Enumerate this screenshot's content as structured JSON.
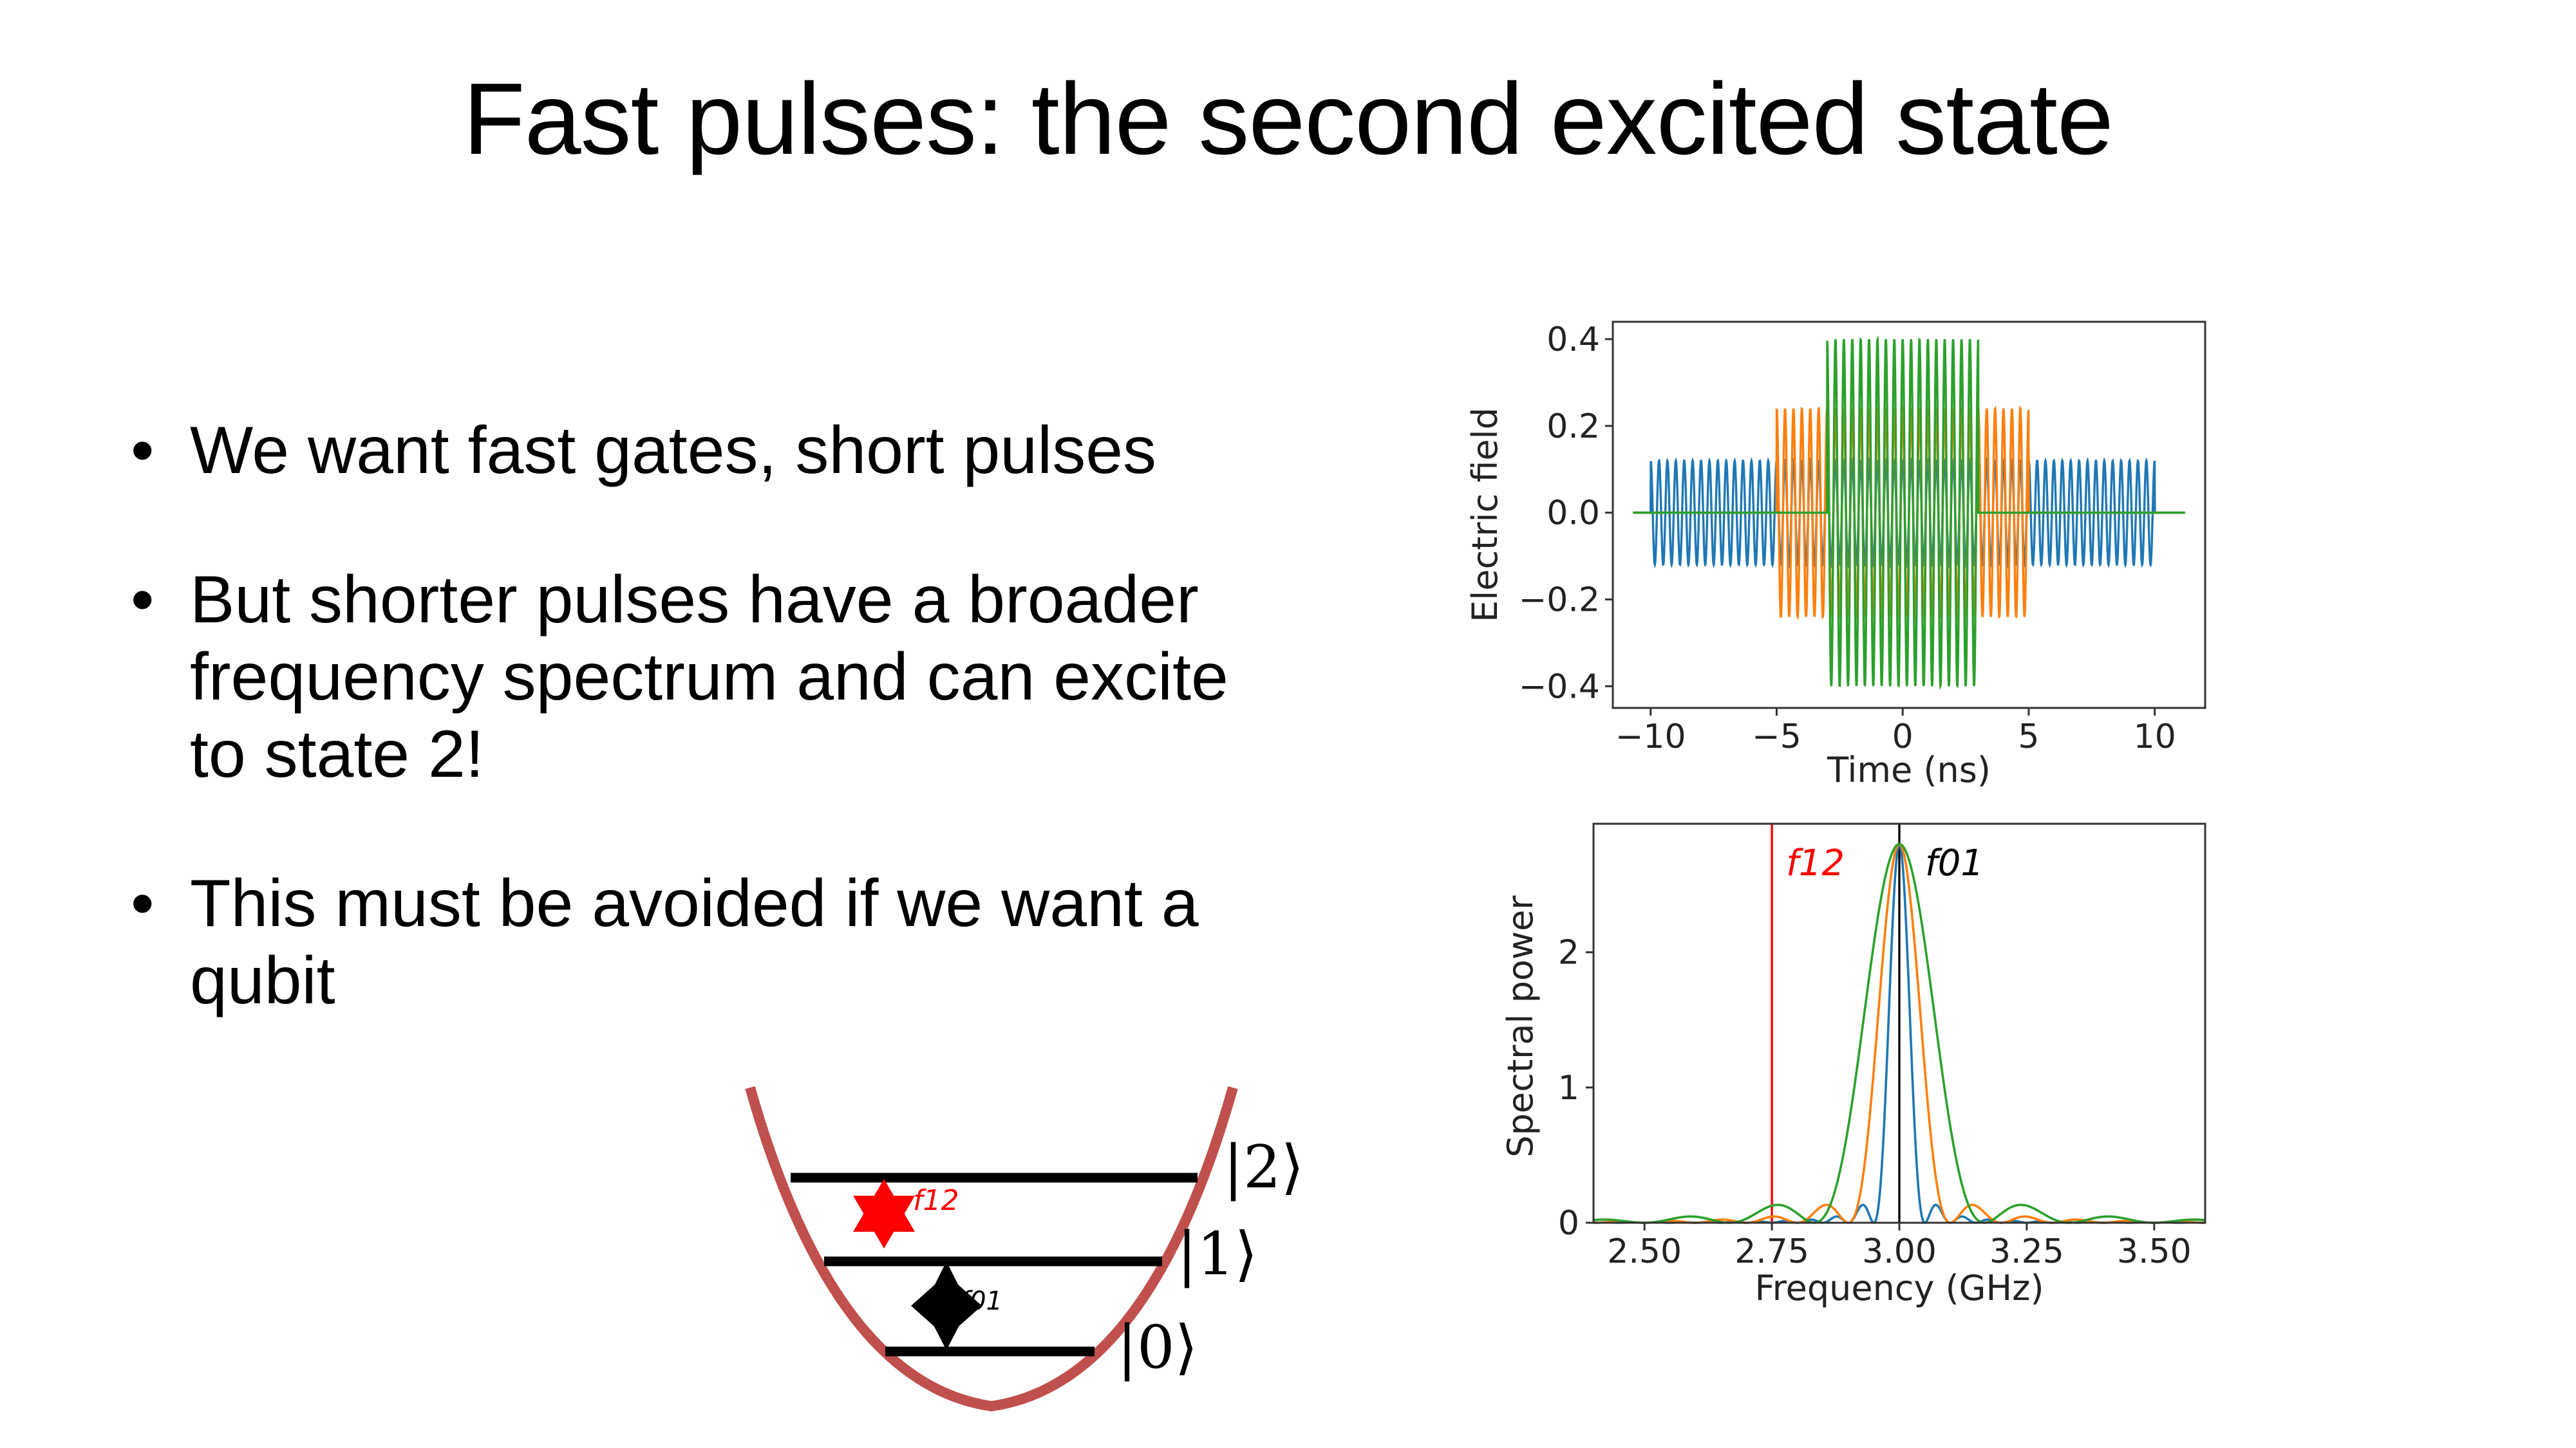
{
  "slide": {
    "title": "Fast pulses: the second excited state",
    "bullets": [
      "We want fast gates, short pulses",
      "But shorter pulses have a broader frequency spectrum and can excite to state 2!",
      "This must be avoided if we want a qubit"
    ]
  },
  "diagram": {
    "states": [
      "|0⟩",
      "|1⟩",
      "|2⟩"
    ],
    "transitions": [
      "f12",
      "f01"
    ],
    "colors": {
      "well": "#c0504d",
      "transition_12": "#ff0000",
      "transition_01": "#000000"
    }
  },
  "chart_data": [
    {
      "type": "line",
      "xlabel": "Time (ns)",
      "ylabel": "Electric field",
      "xlim": [
        -11.5,
        12
      ],
      "ylim": [
        -0.45,
        0.44
      ],
      "xticks": [
        "−10",
        "−5",
        "0",
        "5",
        "10"
      ],
      "yticks": [
        "0.4",
        "0.2",
        "0.0",
        "−0.2",
        "−0.4"
      ],
      "series": [
        {
          "color": "#1f77b4",
          "duration": 20,
          "amplitude": 0.12,
          "carrier_ghz": 3.0
        },
        {
          "color": "#ff7f0e",
          "duration": 10,
          "amplitude": 0.24,
          "carrier_ghz": 3.0
        },
        {
          "color": "#2ca02c",
          "duration": 6,
          "amplitude": 0.4,
          "carrier_ghz": 3.0
        }
      ]
    },
    {
      "type": "line",
      "xlabel": "Frequency (GHz)",
      "ylabel": "Spectral power",
      "xlim": [
        2.4,
        3.6
      ],
      "ylim": [
        0,
        2.95
      ],
      "xticks": [
        "2.50",
        "2.75",
        "3.00",
        "3.25",
        "3.50"
      ],
      "yticks": [
        "0",
        "1",
        "2"
      ],
      "vlines": [
        {
          "x": 2.75,
          "color": "#ff0000",
          "label": "f12"
        },
        {
          "x": 3.0,
          "color": "#000000",
          "label": "f01"
        }
      ],
      "series": [
        {
          "color": "#1f77b4",
          "peak": 2.8,
          "duration_ns": 20
        },
        {
          "color": "#ff7f0e",
          "peak": 2.8,
          "duration_ns": 10
        },
        {
          "color": "#2ca02c",
          "peak": 2.8,
          "duration_ns": 6
        }
      ]
    }
  ]
}
